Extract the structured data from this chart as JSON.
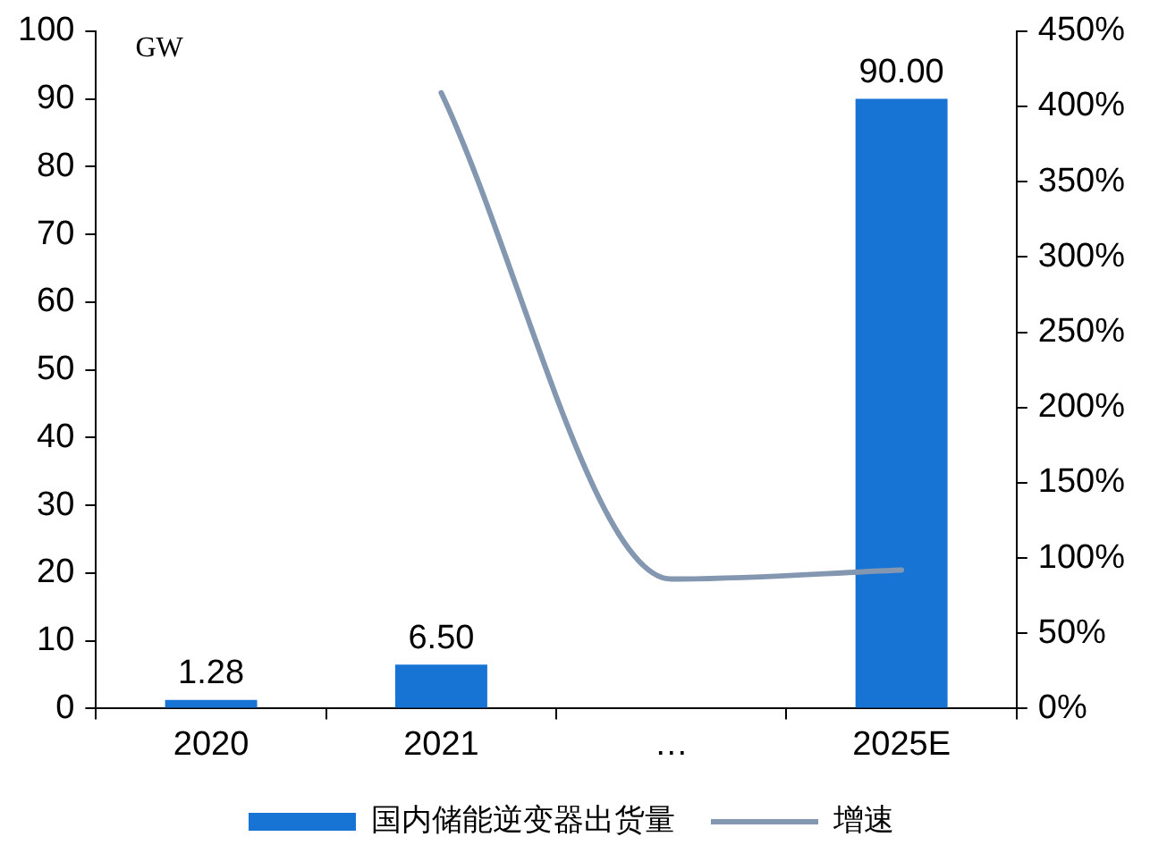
{
  "chart_data": {
    "type": "bar",
    "ylabel": "GW",
    "categories": [
      "2020",
      "2021",
      "…",
      "2025E"
    ],
    "series": [
      {
        "name": "国内储能逆变器出货量",
        "color": "#1874d4",
        "values": [
          1.28,
          6.5,
          null,
          90
        ],
        "value_labels": [
          "1.28",
          "6.50",
          null,
          "90.00"
        ]
      },
      {
        "name": "增速",
        "type": "line",
        "axis": "y2",
        "color": "#8497b0",
        "values": [
          null,
          409,
          86,
          92
        ]
      }
    ],
    "ylim": [
      0,
      100
    ],
    "yticks": [
      0,
      10,
      20,
      30,
      40,
      50,
      60,
      70,
      80,
      90,
      100
    ],
    "y2lim": [
      0,
      450
    ],
    "y2ticks": [
      {
        "value": 0,
        "label": "0%"
      },
      {
        "value": 50,
        "label": "50%"
      },
      {
        "value": 100,
        "label": "100%"
      },
      {
        "value": 150,
        "label": "150%"
      },
      {
        "value": 200,
        "label": "200%"
      },
      {
        "value": 250,
        "label": "250%"
      },
      {
        "value": 300,
        "label": "300%"
      },
      {
        "value": 350,
        "label": "350%"
      },
      {
        "value": 400,
        "label": "400%"
      },
      {
        "value": 450,
        "label": "450%"
      }
    ],
    "grid": false,
    "legend": "bottom",
    "marker": "none",
    "line_style": "solid"
  }
}
